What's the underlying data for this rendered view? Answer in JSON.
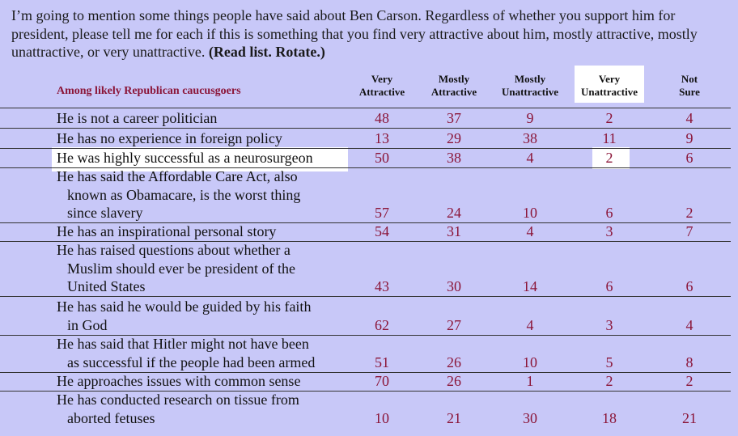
{
  "intro": {
    "text": "I’m going to mention some things people have said about Ben Carson.  Regardless of whether you support him for president, please tell me for each if this is something that you find very attractive about him, mostly attractive, mostly unattractive, or very unattractive. ",
    "instruction": "(Read list.  Rotate.)"
  },
  "table": {
    "subtitle": "Among likely Republican caucusgoers",
    "columns": [
      {
        "line1": "Very",
        "line2": "Attractive"
      },
      {
        "line1": "Mostly",
        "line2": "Attractive"
      },
      {
        "line1": "Mostly",
        "line2": "Unattractive"
      },
      {
        "line1": "Very",
        "line2": "Unattractive"
      },
      {
        "line1": "Not",
        "line2": "Sure"
      }
    ],
    "rows": [
      {
        "label": [
          "He is not a career politician"
        ],
        "values": [
          "48",
          "37",
          "9",
          "2",
          "4"
        ]
      },
      {
        "label": [
          "He has no experience in foreign policy"
        ],
        "values": [
          "13",
          "29",
          "38",
          "11",
          "9"
        ]
      },
      {
        "label": [
          "He was highly successful as a neurosurgeon"
        ],
        "values": [
          "50",
          "38",
          "4",
          "2",
          "6"
        ]
      },
      {
        "label": [
          "He has said the Affordable Care Act, also",
          "known as Obamacare, is the worst thing",
          "since slavery"
        ],
        "values": [
          "57",
          "24",
          "10",
          "6",
          "2"
        ]
      },
      {
        "label": [
          "He has an inspirational personal story"
        ],
        "values": [
          "54",
          "31",
          "4",
          "3",
          "7"
        ]
      },
      {
        "label": [
          "He has raised questions about whether a",
          "Muslim should ever be president of the",
          "United States"
        ],
        "values": [
          "43",
          "30",
          "14",
          "6",
          "6"
        ]
      },
      {
        "label": [
          "He has said he would be guided by his faith",
          "in God"
        ],
        "values": [
          "62",
          "27",
          "4",
          "3",
          "4"
        ]
      },
      {
        "label": [
          "He has said that Hitler might not have been",
          "as successful if the people had been armed"
        ],
        "values": [
          "51",
          "26",
          "10",
          "5",
          "8"
        ]
      },
      {
        "label": [
          "He approaches issues with common sense"
        ],
        "values": [
          "70",
          "26",
          "1",
          "2",
          "2"
        ]
      },
      {
        "label": [
          "He has conducted research on tissue from",
          "aborted fetuses"
        ],
        "values": [
          "10",
          "21",
          "30",
          "18",
          "21"
        ]
      }
    ]
  }
}
